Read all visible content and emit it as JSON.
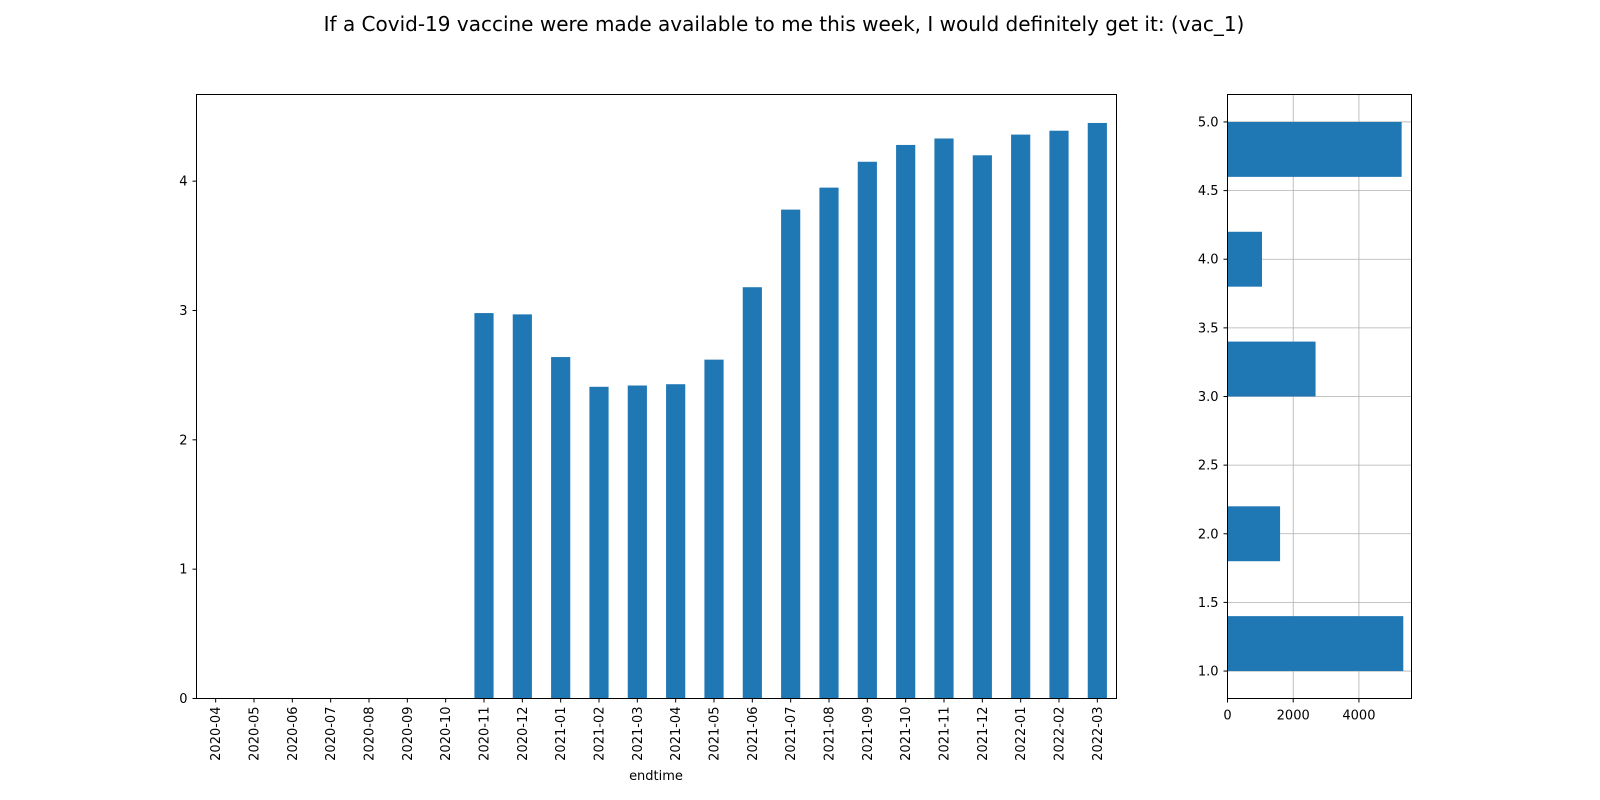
{
  "title": "If a Covid-19 vaccine were made available to me this week, I would definitely get it: (vac_1)",
  "colors": {
    "bar": "#1f77b4",
    "grid": "#b0b0b0",
    "axis": "#000000"
  },
  "chart_data": [
    {
      "type": "bar",
      "xlabel": "endtime",
      "ylabel": "",
      "ylim": [
        0,
        4.67
      ],
      "yticks": [
        0,
        1,
        2,
        3,
        4
      ],
      "grid": false,
      "categories": [
        "2020-04",
        "2020-05",
        "2020-06",
        "2020-07",
        "2020-08",
        "2020-09",
        "2020-10",
        "2020-11",
        "2020-12",
        "2021-01",
        "2021-02",
        "2021-03",
        "2021-04",
        "2021-05",
        "2021-06",
        "2021-07",
        "2021-08",
        "2021-09",
        "2021-10",
        "2021-11",
        "2021-12",
        "2022-01",
        "2022-02",
        "2022-03"
      ],
      "values": [
        0,
        0,
        0,
        0,
        0,
        0,
        0,
        2.98,
        2.97,
        2.64,
        2.41,
        2.42,
        2.43,
        2.62,
        3.18,
        3.78,
        3.95,
        4.15,
        4.28,
        4.33,
        4.2,
        4.36,
        4.39,
        4.45
      ]
    },
    {
      "type": "histogram",
      "orientation": "horizontal",
      "xlabel": "",
      "ylabel": "",
      "xlim": [
        0,
        5600
      ],
      "ylim": [
        0.8,
        5.2
      ],
      "xticks": [
        0,
        2000,
        4000
      ],
      "yticks": [
        "1.0",
        "1.5",
        "2.0",
        "2.5",
        "3.0",
        "3.5",
        "4.0",
        "4.5",
        "5.0"
      ],
      "grid": true,
      "bins": [
        {
          "from": 1.0,
          "to": 1.4,
          "count": 5350
        },
        {
          "from": 1.8,
          "to": 2.2,
          "count": 1600
        },
        {
          "from": 3.0,
          "to": 3.4,
          "count": 2680
        },
        {
          "from": 3.8,
          "to": 4.2,
          "count": 1050
        },
        {
          "from": 4.6,
          "to": 5.0,
          "count": 5300
        }
      ]
    }
  ]
}
